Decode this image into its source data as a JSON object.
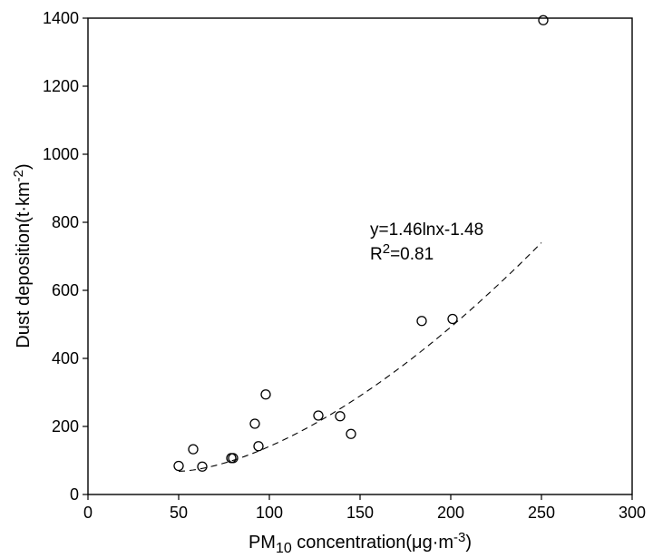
{
  "chart_data": {
    "type": "scatter",
    "xlim": [
      0,
      300
    ],
    "ylim": [
      0,
      1400
    ],
    "x_ticks": [
      0,
      50,
      100,
      150,
      200,
      250,
      300
    ],
    "y_ticks": [
      0,
      200,
      400,
      600,
      800,
      1000,
      1200,
      1400
    ],
    "grid": false,
    "xlabel": {
      "prefix": "PM",
      "subscript": "10",
      "mid": " concentration(μg·m",
      "superscript": "-3",
      "suffix": ")"
    },
    "ylabel": {
      "prefix": "Dust deposition(t·km",
      "superscript": "-2",
      "suffix": ")"
    },
    "points": [
      {
        "x": 50,
        "y": 84
      },
      {
        "x": 58,
        "y": 133
      },
      {
        "x": 63,
        "y": 82
      },
      {
        "x": 79,
        "y": 107
      },
      {
        "x": 80,
        "y": 107
      },
      {
        "x": 92,
        "y": 208
      },
      {
        "x": 94,
        "y": 142
      },
      {
        "x": 98,
        "y": 294
      },
      {
        "x": 127,
        "y": 232
      },
      {
        "x": 139,
        "y": 230
      },
      {
        "x": 145,
        "y": 178
      },
      {
        "x": 184,
        "y": 510
      },
      {
        "x": 201,
        "y": 516
      },
      {
        "x": 251,
        "y": 1394
      }
    ],
    "fit": {
      "style": "dashed",
      "x_range": [
        50,
        250
      ],
      "y_range": [
        68,
        740
      ],
      "equation": "y=1.46lnx-1.48",
      "r2_prefix": "R",
      "r2_superscript": "2",
      "r2_suffix": "=0.81"
    }
  }
}
